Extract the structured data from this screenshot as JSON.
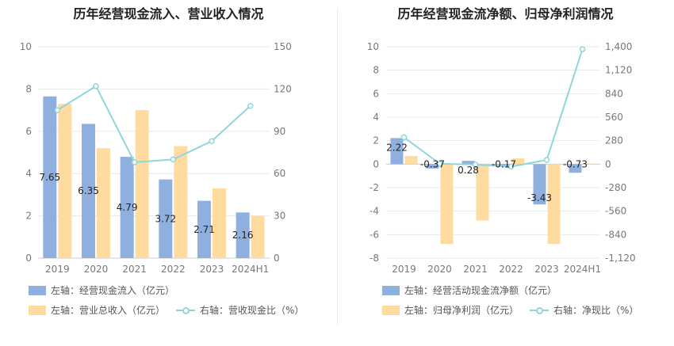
{
  "colors": {
    "bar1": "#8fb0de",
    "bar2": "#ffdba0",
    "line": "#8fd6dc",
    "grid": "#e8e8e8"
  },
  "chart_data": [
    {
      "type": "bar",
      "title": "历年经营现金流入、营业收入情况",
      "categories": [
        "2019",
        "2020",
        "2021",
        "2022",
        "2023",
        "2024H1"
      ],
      "y_left": {
        "min": 0,
        "max": 10,
        "ticks": [
          "0",
          "2",
          "4",
          "6",
          "8",
          "10"
        ]
      },
      "y_right": {
        "min": 0,
        "max": 150,
        "ticks": [
          "0",
          "30",
          "60",
          "90",
          "120",
          "150"
        ]
      },
      "series": [
        {
          "name": "左轴：经营现金流入（亿元）",
          "kind": "bar",
          "axis": "left",
          "values": [
            7.65,
            6.35,
            4.79,
            3.72,
            2.71,
            2.16
          ],
          "labels": [
            "7.65",
            "6.35",
            "4.79",
            "3.72",
            "2.71",
            "2.16"
          ]
        },
        {
          "name": "左轴：营业总收入（亿元）",
          "kind": "bar",
          "axis": "left",
          "values": [
            7.3,
            5.2,
            7.0,
            5.3,
            3.3,
            2.0
          ]
        },
        {
          "name": "右轴：营收现金比（%）",
          "kind": "line",
          "axis": "right",
          "values": [
            105,
            122,
            68,
            70,
            83,
            108
          ]
        }
      ]
    },
    {
      "type": "bar",
      "title": "历年经营现金流净额、归母净利润情况",
      "categories": [
        "2019",
        "2020",
        "2021",
        "2022",
        "2023",
        "2024H1"
      ],
      "y_left": {
        "min": -8,
        "max": 10,
        "ticks": [
          "-8",
          "-6",
          "-4",
          "-2",
          "0",
          "2",
          "4",
          "6",
          "8",
          "10"
        ]
      },
      "y_right": {
        "min": -1120,
        "max": 1400,
        "ticks": [
          "-1,120",
          "-840",
          "-560",
          "-280",
          "0",
          "280",
          "560",
          "840",
          "1,120",
          "1,400"
        ]
      },
      "series": [
        {
          "name": "左轴：经营活动现金流净额（亿元）",
          "kind": "bar",
          "axis": "left",
          "values": [
            2.22,
            -0.37,
            0.28,
            -0.17,
            -3.43,
            -0.73
          ],
          "labels": [
            "2.22",
            "-0.37",
            "0.28",
            "-0.17",
            "-3.43",
            "-0.73"
          ]
        },
        {
          "name": "左轴：归母净利润（亿元）",
          "kind": "bar",
          "axis": "left",
          "values": [
            0.7,
            -6.8,
            -4.8,
            0.5,
            -6.8,
            0.05
          ]
        },
        {
          "name": "右轴：净现比（%）",
          "kind": "line",
          "axis": "right",
          "values": [
            320,
            5,
            -5,
            -30,
            50,
            1370
          ]
        }
      ]
    }
  ]
}
